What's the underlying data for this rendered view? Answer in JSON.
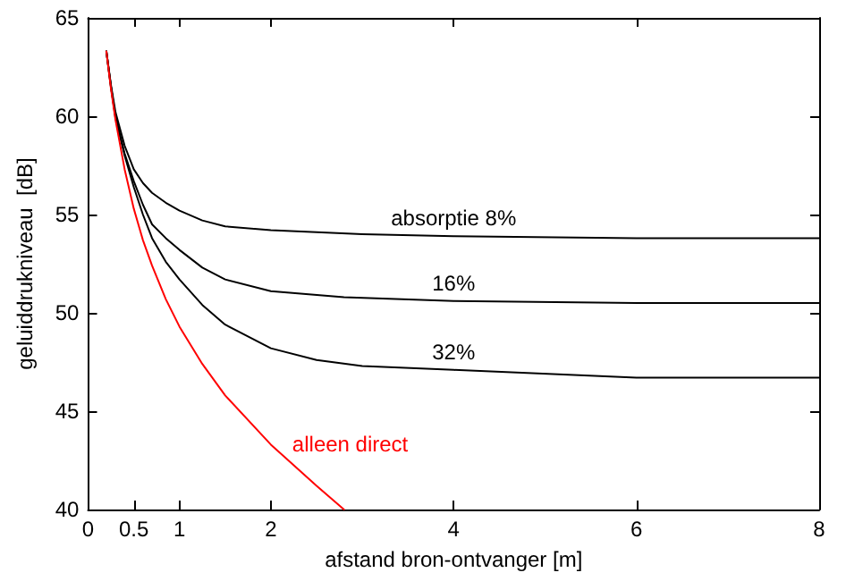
{
  "chart_data": {
    "type": "line",
    "xlabel": "afstand bron-ontvanger [m]",
    "ylabel": "geluiddrukniveau  [dB]",
    "xlim": [
      0,
      8
    ],
    "xticks": [
      0,
      0.5,
      1,
      2,
      4,
      6,
      8
    ],
    "ylim": [
      40,
      65
    ],
    "yticks": [
      40,
      45,
      50,
      55,
      60,
      65
    ],
    "grid": false,
    "marker": "none",
    "line_style": "solid",
    "series": [
      {
        "name": "absorptie 8%",
        "color": "#000000",
        "x": [
          0.2,
          0.25,
          0.3,
          0.4,
          0.5,
          0.6,
          0.7,
          0.85,
          1,
          1.25,
          1.5,
          2,
          3,
          4,
          6,
          8
        ],
        "values": [
          63.3,
          61.6,
          60.2,
          58.5,
          57.3,
          56.6,
          56.1,
          55.6,
          55.2,
          54.7,
          54.4,
          54.2,
          54,
          53.9,
          53.8,
          53.8
        ]
      },
      {
        "name": "16%",
        "color": "#000000",
        "x": [
          0.2,
          0.25,
          0.3,
          0.4,
          0.5,
          0.6,
          0.7,
          0.85,
          1,
          1.25,
          1.5,
          2,
          2.8,
          4,
          6,
          8
        ],
        "values": [
          63.3,
          61.5,
          60,
          58.1,
          56.7,
          55.5,
          54.5,
          53.8,
          53.2,
          52.3,
          51.7,
          51.1,
          50.8,
          50.6,
          50.5,
          50.5
        ]
      },
      {
        "name": "32%",
        "color": "#000000",
        "x": [
          0.2,
          0.25,
          0.3,
          0.4,
          0.5,
          0.6,
          0.7,
          0.85,
          1,
          1.25,
          1.5,
          2,
          2.5,
          3,
          4,
          6,
          8
        ],
        "values": [
          63.3,
          61.5,
          59.9,
          58,
          56.4,
          55,
          53.8,
          52.6,
          51.7,
          50.4,
          49.4,
          48.2,
          47.6,
          47.3,
          47.1,
          46.7,
          46.7
        ]
      },
      {
        "name": "alleen direct",
        "color": "#ff0000",
        "x": [
          0.2,
          0.25,
          0.3,
          0.4,
          0.5,
          0.6,
          0.7,
          0.85,
          1,
          1.25,
          1.5,
          2,
          2.5,
          2.8
        ],
        "values": [
          63.3,
          61.4,
          59.8,
          57.3,
          55.3,
          53.7,
          52.4,
          50.7,
          49.3,
          47.4,
          45.8,
          43.3,
          41.2,
          40
        ]
      }
    ]
  }
}
